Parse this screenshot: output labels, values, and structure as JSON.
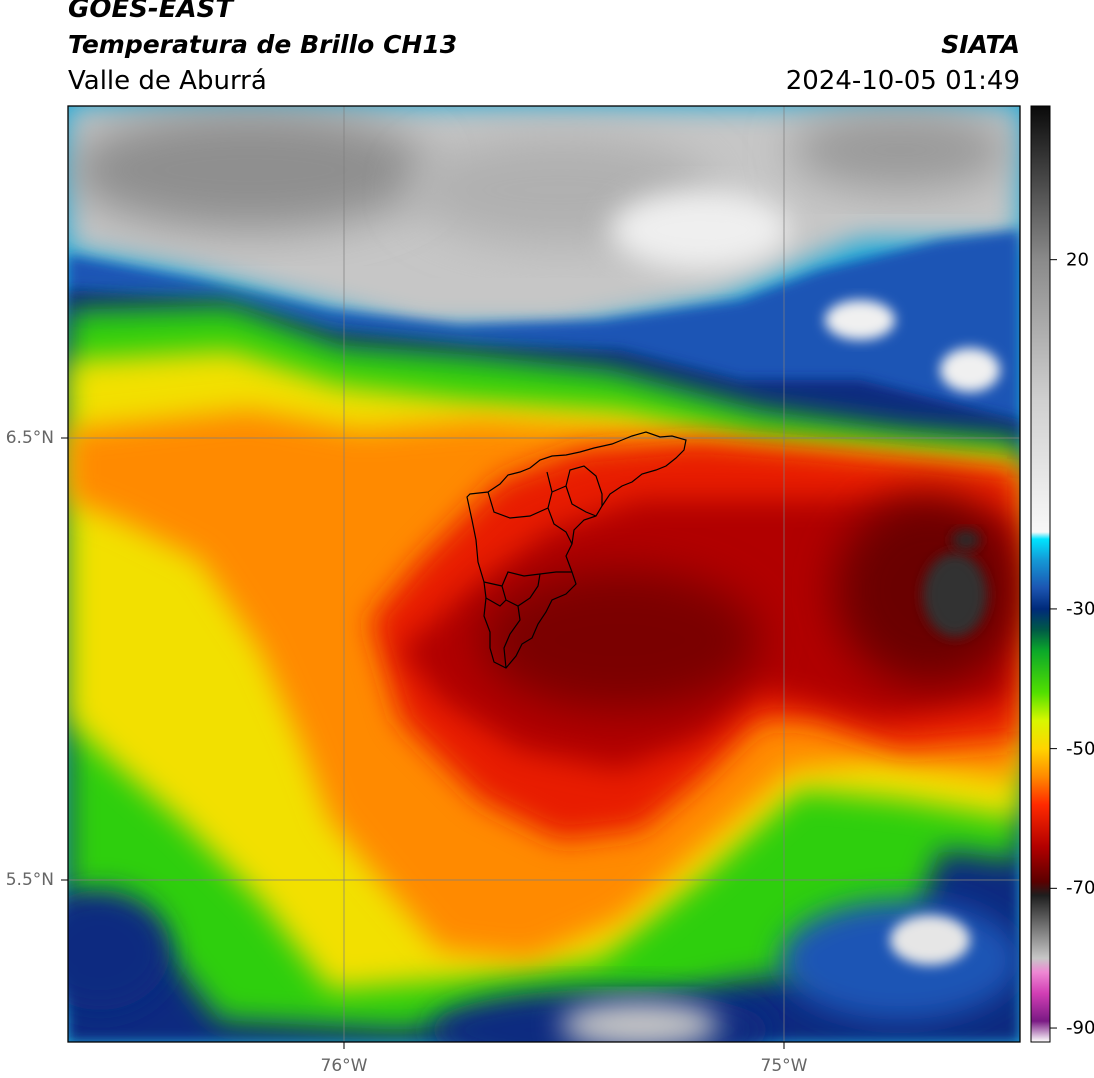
{
  "header": {
    "satellite": "GOES-EAST",
    "product": "Temperatura de Brillo CH13",
    "organization": "SIATA",
    "region": "Valle de Aburrá",
    "datetime": "2024-10-05 01:49"
  },
  "axes": {
    "lat_labels": [
      "6.5°N",
      "5.5°N"
    ],
    "lon_labels": [
      "76°W",
      "75°W"
    ]
  },
  "colorbar": {
    "ticks": [
      "20",
      "-30",
      "-50",
      "-70",
      "-90"
    ],
    "tick_values": [
      20,
      -30,
      -50,
      -70,
      -90
    ],
    "range": [
      -92,
      42
    ],
    "palette": [
      {
        "v": -92,
        "c": "#ffffff"
      },
      {
        "v": -89,
        "c": "#7a1a84"
      },
      {
        "v": -85,
        "c": "#d23fb5"
      },
      {
        "v": -82,
        "c": "#ee88d3"
      },
      {
        "v": -80,
        "c": "#c7c7c7"
      },
      {
        "v": -75,
        "c": "#6a6a6a"
      },
      {
        "v": -71,
        "c": "#1e1e1e"
      },
      {
        "v": -69,
        "c": "#5c0000"
      },
      {
        "v": -64,
        "c": "#b30000"
      },
      {
        "v": -58,
        "c": "#ff2a00"
      },
      {
        "v": -54,
        "c": "#ff8a00"
      },
      {
        "v": -50,
        "c": "#ffd400"
      },
      {
        "v": -46,
        "c": "#d8f700"
      },
      {
        "v": -42,
        "c": "#52e000"
      },
      {
        "v": -36,
        "c": "#0ba82a"
      },
      {
        "v": -33,
        "c": "#005a46"
      },
      {
        "v": -30,
        "c": "#002a7a"
      },
      {
        "v": -27,
        "c": "#1c55b2"
      },
      {
        "v": -23,
        "c": "#1499d6"
      },
      {
        "v": -20,
        "c": "#00e4ff"
      },
      {
        "v": -19,
        "c": "#f8f8f8"
      },
      {
        "v": 0,
        "c": "#cfcfcf"
      },
      {
        "v": 20,
        "c": "#8a8a8a"
      },
      {
        "v": 42,
        "c": "#0a0a0a"
      }
    ]
  },
  "colors": {
    "frame": "#000000",
    "grid": "#7f7f7f",
    "boundary": "#000000",
    "deep_convection": "#8b0000",
    "overshooting_top": "#333333"
  }
}
